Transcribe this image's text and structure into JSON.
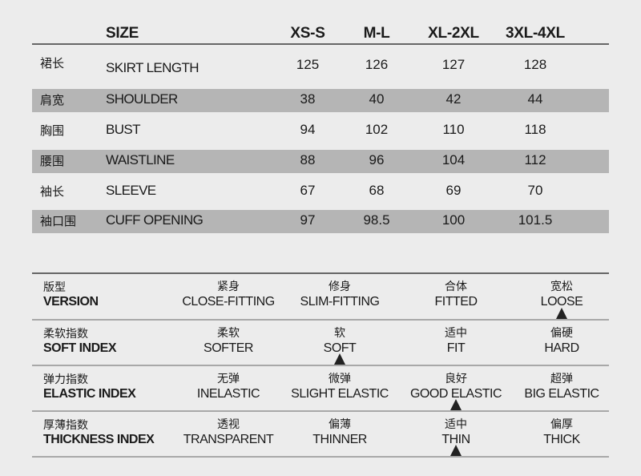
{
  "size_table": {
    "header": {
      "label": "SIZE",
      "sizes": [
        "XS-S",
        "M-L",
        "XL-2XL",
        "3XL-4XL"
      ]
    },
    "rows": [
      {
        "cn": "裙长",
        "en": "SKIRT LENGTH",
        "values": [
          "125",
          "126",
          "127",
          "128"
        ],
        "shaded": false
      },
      {
        "cn": "肩宽",
        "en": "SHOULDER",
        "values": [
          "38",
          "40",
          "42",
          "44"
        ],
        "shaded": true
      },
      {
        "cn": "胸围",
        "en": "BUST",
        "values": [
          "94",
          "102",
          "110",
          "118"
        ],
        "shaded": false
      },
      {
        "cn": "腰围",
        "en": "WAISTLINE",
        "values": [
          "88",
          "96",
          "104",
          "112"
        ],
        "shaded": true
      },
      {
        "cn": "袖长",
        "en": "SLEEVE",
        "values": [
          "67",
          "68",
          "69",
          "70"
        ],
        "shaded": false
      },
      {
        "cn": "袖口围",
        "en": "CUFF OPENING",
        "values": [
          "97",
          "98.5",
          "100",
          "101.5"
        ],
        "shaded": true
      }
    ]
  },
  "fabric_table": {
    "rows": [
      {
        "cn": "版型",
        "en": "VERSION",
        "options": [
          {
            "cn": "紧身",
            "en": "CLOSE-FITTING"
          },
          {
            "cn": "修身",
            "en": "SLIM-FITTING"
          },
          {
            "cn": "合体",
            "en": "FITTED"
          },
          {
            "cn": "宽松",
            "en": "LOOSE"
          }
        ],
        "selected": 3
      },
      {
        "cn": "柔软指数",
        "en": "SOFT INDEX",
        "options": [
          {
            "cn": "柔软",
            "en": "SOFTER"
          },
          {
            "cn": "软",
            "en": "SOFT"
          },
          {
            "cn": "适中",
            "en": "FIT"
          },
          {
            "cn": "偏硬",
            "en": "HARD"
          }
        ],
        "selected": 1
      },
      {
        "cn": "弹力指数",
        "en": "ELASTIC INDEX",
        "options": [
          {
            "cn": "无弹",
            "en": "INELASTIC"
          },
          {
            "cn": "微弹",
            "en": "SLIGHT  ELASTIC"
          },
          {
            "cn": "良好",
            "en": "GOOD ELASTIC"
          },
          {
            "cn": "超弹",
            "en": "BIG ELASTIC"
          }
        ],
        "selected": 2
      },
      {
        "cn": "厚薄指数",
        "en": "THICKNESS INDEX",
        "options": [
          {
            "cn": "透视",
            "en": "TRANSPARENT"
          },
          {
            "cn": "偏薄",
            "en": "THINNER"
          },
          {
            "cn": "适中",
            "en": "THIN"
          },
          {
            "cn": "偏厚",
            "en": "THICK"
          }
        ],
        "selected": 2
      }
    ]
  },
  "colors": {
    "background": "#ececec",
    "band": "#b5b5b5",
    "marker": "#222222"
  },
  "icons": {
    "selection_marker": "triangle-up-icon"
  }
}
